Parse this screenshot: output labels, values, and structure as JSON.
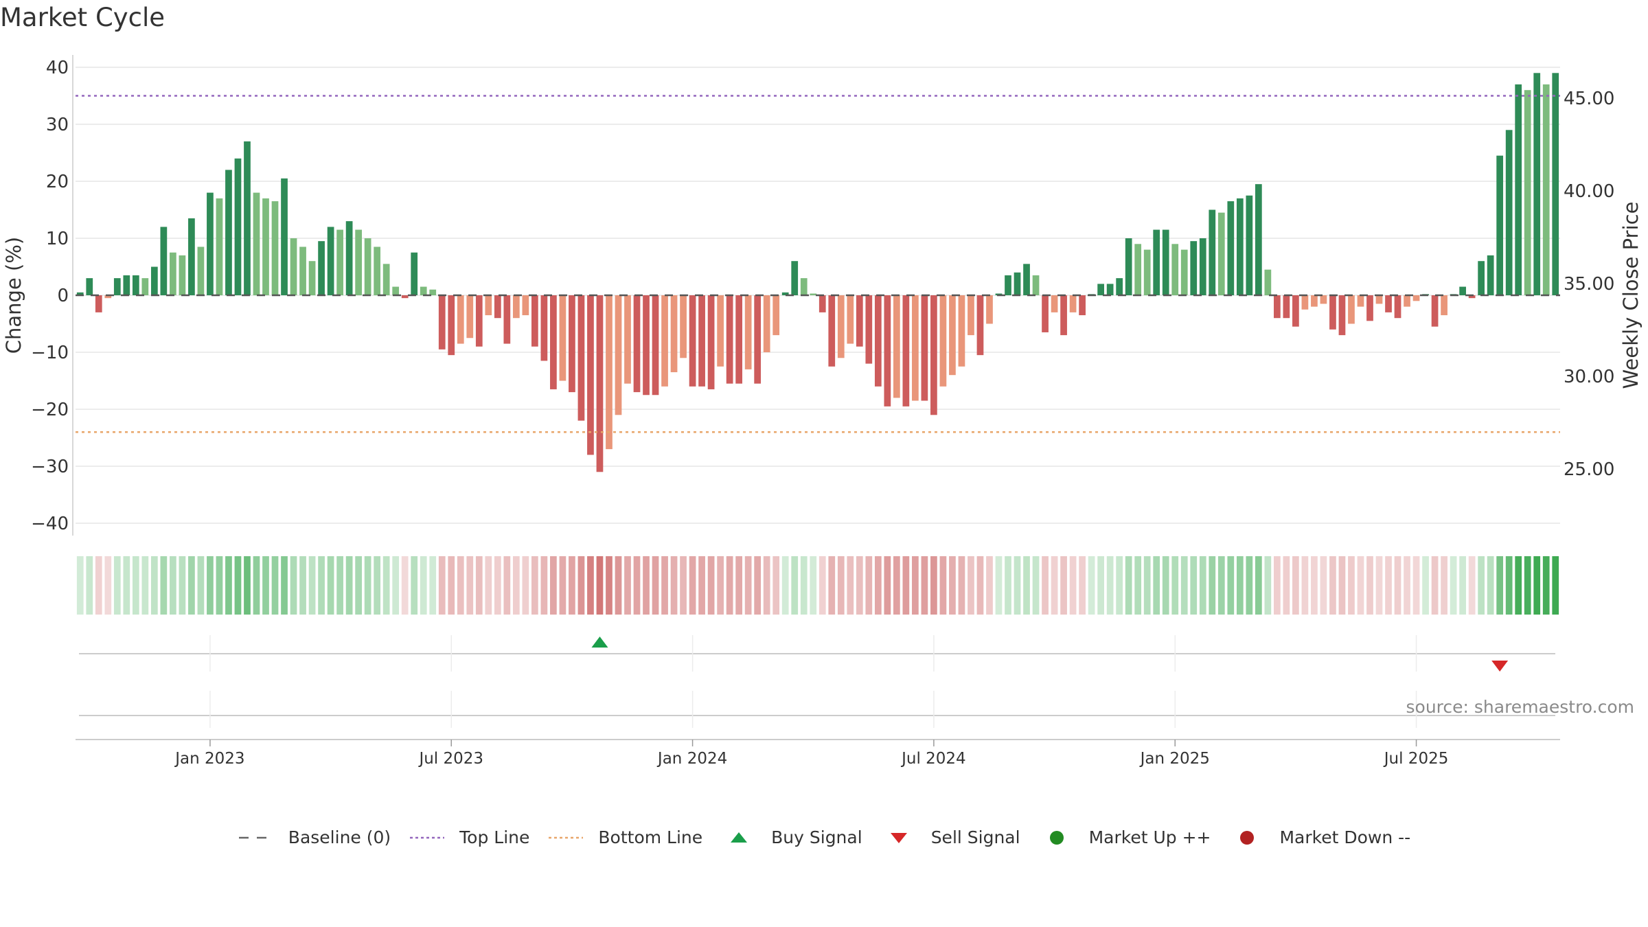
{
  "title": "Market Cycle",
  "source": "source: sharemaestro.com",
  "colors": {
    "up_strong": "#2e8b57",
    "up_weak": "#7dbb7d",
    "down_strong": "#cd5c5c",
    "down_weak": "#e9967a",
    "top_line": "#9467bd",
    "bottom_line": "#e8a66a",
    "baseline": "#555555",
    "buy": "#1a9e4a",
    "sell": "#d62728",
    "market_up": "#228b22",
    "market_down": "#b22222"
  },
  "legend": [
    {
      "label": "Baseline (0)",
      "icon": "dash-line",
      "color": "#666666"
    },
    {
      "label": "Top Line",
      "icon": "dotted-line",
      "color": "#9467bd"
    },
    {
      "label": "Bottom Line",
      "icon": "dotted-line",
      "color": "#e8a66a"
    },
    {
      "label": "Buy Signal",
      "icon": "triangle-up",
      "color": "#1a9e4a"
    },
    {
      "label": "Sell Signal",
      "icon": "triangle-down",
      "color": "#d62728"
    },
    {
      "label": "Market Up ++",
      "icon": "circle",
      "color": "#228b22"
    },
    {
      "label": "Market Down --",
      "icon": "circle",
      "color": "#b22222"
    }
  ],
  "chart_data": {
    "type": "bar",
    "ylabel": "Change (%)",
    "y2label": "Weekly Close Price",
    "ylim": [
      -42,
      43
    ],
    "yticks": [
      40,
      30,
      20,
      10,
      0,
      -10,
      -20,
      -30,
      -40
    ],
    "ytick_labels": [
      "40",
      "30",
      "20",
      "10",
      "0",
      "−10",
      "−20",
      "−30",
      "−40"
    ],
    "y2ticks": [
      45,
      40,
      35,
      30,
      25
    ],
    "y2tick_labels": [
      "45.00",
      "40.00",
      "35.00",
      "30.00",
      "25.00"
    ],
    "top_line": 35,
    "bottom_line": -24,
    "xtick_labels": [
      "Jan 2023",
      "Jul 2023",
      "Jan 2024",
      "Jul 2024",
      "Jan 2025",
      "Jul 2025"
    ],
    "xtick_weeks": [
      14.5,
      40.5,
      66.5,
      92.5,
      118.5,
      144.5
    ],
    "values": [
      0.5,
      3,
      -3,
      -0.5,
      3,
      3.5,
      3.5,
      3,
      5,
      12,
      7.5,
      7,
      13.5,
      8.5,
      18,
      17,
      22,
      24,
      27,
      18,
      17,
      16.5,
      20.5,
      10,
      8.5,
      6,
      9.5,
      12,
      11.5,
      13,
      11.5,
      10,
      8.5,
      5.5,
      1.5,
      -0.5,
      7.5,
      1.5,
      1,
      -9.5,
      -10.5,
      -8.5,
      -7.5,
      -9,
      -3.5,
      -4,
      -8.5,
      -4,
      -3.5,
      -9,
      -11.5,
      -16.5,
      -15,
      -17,
      -22,
      -28,
      -31,
      -27,
      -21,
      -15.5,
      -17,
      -17.5,
      -17.5,
      -16,
      -13.5,
      -11,
      -16,
      -16,
      -16.5,
      -12.5,
      -15.5,
      -15.5,
      -13,
      -15.5,
      -10,
      -7,
      0.5,
      6,
      3,
      0.3,
      -3,
      -12.5,
      -11,
      -8.5,
      -9,
      -12,
      -16,
      -19.5,
      -18,
      -19.5,
      -18.5,
      -18.5,
      -21,
      -16,
      -14,
      -12.5,
      -7,
      -10.5,
      -5,
      0.3,
      3.5,
      4,
      5.5,
      3.5,
      -6.5,
      -3,
      -7,
      -3,
      -3.5,
      0.2,
      2,
      2,
      3,
      10,
      9,
      8,
      11.5,
      11.5,
      9,
      8,
      9.5,
      10,
      15,
      14.5,
      16.5,
      17,
      17.5,
      19.5,
      4.5,
      -4,
      -4,
      -5.5,
      -2.5,
      -2,
      -1.5,
      -6,
      -7,
      -5,
      -2,
      -4.5,
      -1.5,
      -3,
      -4,
      -2,
      -1,
      0.2,
      -5.5,
      -3.5,
      0.2,
      1.5,
      -0.5,
      6,
      7,
      24.5,
      29,
      37,
      36,
      39,
      37,
      39
    ],
    "signals": [
      {
        "type": "buy",
        "week": 56
      },
      {
        "type": "sell",
        "week": 153
      }
    ]
  }
}
